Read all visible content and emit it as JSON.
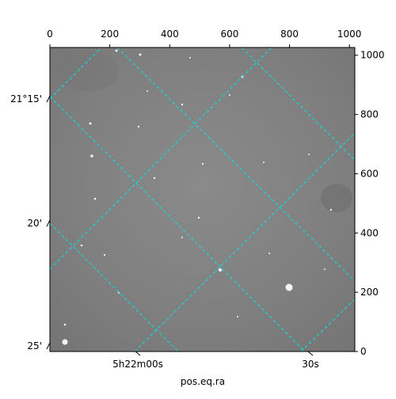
{
  "chart_data": {
    "type": "image",
    "x_label": "pos.eq.ra",
    "xlim": [
      0,
      1018
    ],
    "xticks": [
      0,
      200,
      400,
      600,
      800,
      1000
    ],
    "ylim": [
      0,
      1026
    ],
    "yticks": [
      0,
      200,
      400,
      600,
      800,
      1000
    ],
    "dec_ticks": [
      "21°15'",
      "20'",
      "25'"
    ],
    "ra_ticks": [
      "5h22m00s",
      "30s"
    ],
    "grid_color": "#00e5e5"
  }
}
